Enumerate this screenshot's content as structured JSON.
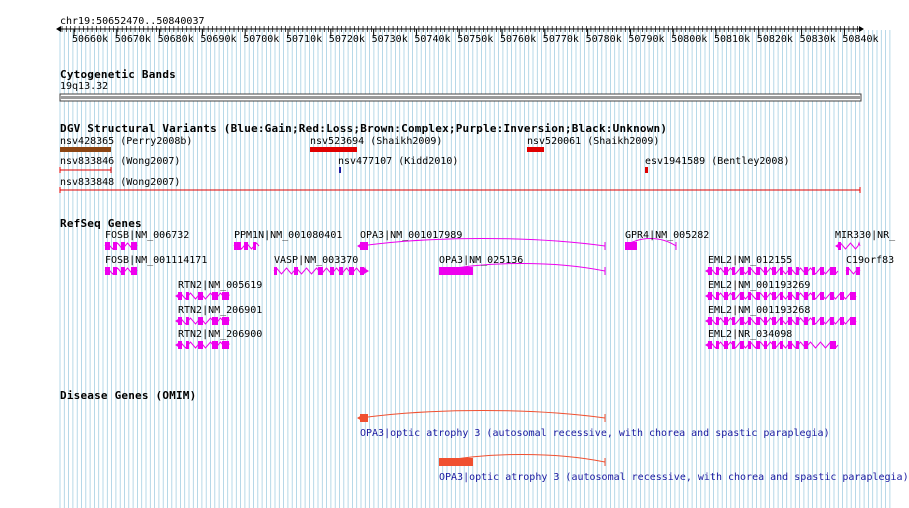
{
  "region": {
    "label": "chr19:50652470..50840037"
  },
  "ruler": {
    "ticks": [
      "50660k",
      "50670k",
      "50680k",
      "50690k",
      "50700k",
      "50710k",
      "50720k",
      "50730k",
      "50740k",
      "50750k",
      "50760k",
      "50770k",
      "50780k",
      "50790k",
      "50800k",
      "50810k",
      "50820k",
      "50830k",
      "50840k"
    ]
  },
  "tracks": {
    "cytobands": {
      "title": "Cytogenetic Bands",
      "band": "19q13.32"
    },
    "dgv": {
      "title": "DGV Structural Variants (Blue:Gain;Red:Loss;Brown:Complex;Purple:Inversion;Black:Unknown)",
      "variants": [
        {
          "label": "nsv428365 (Perry2008b)",
          "color": "#8b4513"
        },
        {
          "label": "nsv523694 (Shaikh2009)",
          "color": "#e00000"
        },
        {
          "label": "nsv520061 (Shaikh2009)",
          "color": "#e00000"
        },
        {
          "label": "nsv833846 (Wong2007)",
          "color": "#e00000"
        },
        {
          "label": "nsv477107 (Kidd2010)",
          "color": "#1a1aa0"
        },
        {
          "label": "esv1941589 (Bentley2008)",
          "color": "#e00000"
        },
        {
          "label": "nsv833848 (Wong2007)",
          "color": "#e00000"
        }
      ]
    },
    "refseq": {
      "title": "RefSeq Genes",
      "color": "#ee00ee",
      "genes": [
        {
          "label": "FOSB|NM_006732"
        },
        {
          "label": "PPM1N|NM_001080401"
        },
        {
          "label": "OPA3|NM_001017989"
        },
        {
          "label": "GPR4|NM_005282"
        },
        {
          "label": "MIR330|NR_"
        },
        {
          "label": "FOSB|NM_001114171"
        },
        {
          "label": "VASP|NM_003370"
        },
        {
          "label": "OPA3|NM_025136"
        },
        {
          "label": "EML2|NM_012155"
        },
        {
          "label": "C19orf83"
        },
        {
          "label": "RTN2|NM_005619"
        },
        {
          "label": "EML2|NM_001193269"
        },
        {
          "label": "RTN2|NM_206901"
        },
        {
          "label": "EML2|NM_001193268"
        },
        {
          "label": "RTN2|NM_206900"
        },
        {
          "label": "EML2|NR_034098"
        }
      ]
    },
    "omim": {
      "title": "Disease Genes (OMIM)",
      "color": "#f05030",
      "entries": [
        {
          "label": "OPA3|optic atrophy 3 (autosomal recessive, with chorea and spastic paraplegia)"
        },
        {
          "label": "OPA3|optic atrophy 3 (autosomal recessive, with chorea and spastic paraplegia)"
        }
      ]
    }
  },
  "colors": {
    "grid": "#8fc4dc",
    "ruler": "#000000",
    "cytoband": "#9a9a9a"
  }
}
